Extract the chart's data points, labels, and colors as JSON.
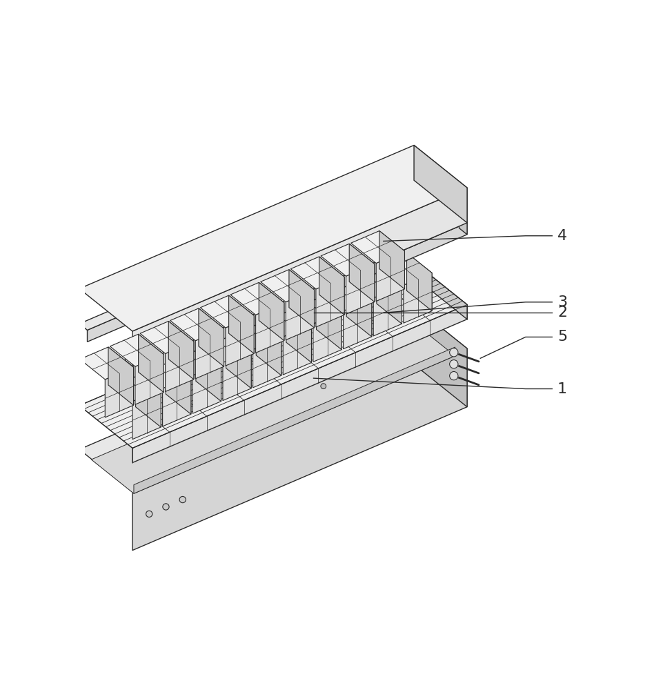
{
  "background_color": "#ffffff",
  "line_color": "#2a2a2a",
  "face_top": "#f5f5f5",
  "face_front": "#e8e8e8",
  "face_right": "#d0d0d0",
  "face_dark": "#b8b8b8",
  "line_width": 1.0,
  "label_fontsize": 16,
  "figure_width": 9.62,
  "figure_height": 10.0
}
